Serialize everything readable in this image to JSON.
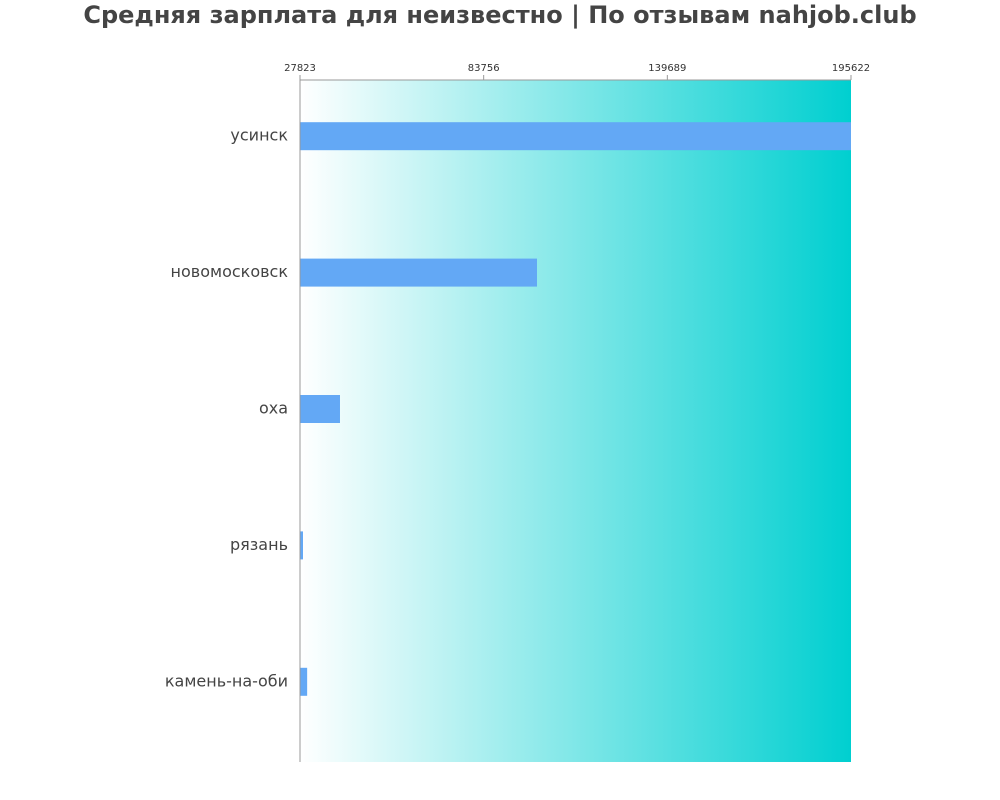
{
  "title": "Средняя зарплата для неизвестно | По отзывам nahjob.club",
  "colors": {
    "bar": "#63a8f5",
    "gradient_start": "#ffffff",
    "gradient_end": "#00cfd0",
    "axis": "#999999",
    "text": "#444444"
  },
  "chart_data": {
    "type": "bar",
    "orientation": "horizontal",
    "title": "Средняя зарплата для неизвестно | По отзывам nahjob.club",
    "categories": [
      "усинск",
      "новомосковск",
      "оха",
      "рязань",
      "камень-на-оби"
    ],
    "values": [
      195622,
      100000,
      40000,
      18000,
      30000
    ],
    "xlim": [
      27823,
      195622
    ],
    "xticks": [
      27823,
      83756,
      139689,
      195622
    ],
    "xtick_labels": [
      "27823",
      "83756",
      "139689",
      "195622"
    ],
    "tick_position": "top",
    "grid": false,
    "legend": "none"
  }
}
